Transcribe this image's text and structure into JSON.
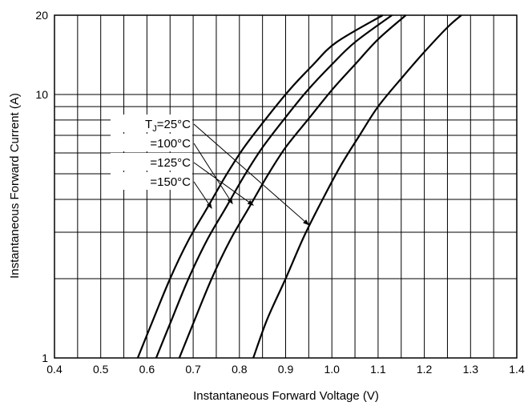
{
  "chart_data": {
    "type": "line",
    "xlabel": "Instantaneous Forward Voltage (V)",
    "ylabel": "Instantaneous Forward Current (A)",
    "xlim": [
      0.4,
      1.4
    ],
    "ylim": [
      1,
      20
    ],
    "yscale": "log",
    "grid": true,
    "x_ticks": [
      {
        "value": 0.4,
        "label": "0.4"
      },
      {
        "value": 0.5,
        "label": "0.5"
      },
      {
        "value": 0.6,
        "label": "0.6"
      },
      {
        "value": 0.7,
        "label": "0.7"
      },
      {
        "value": 0.8,
        "label": "0.8"
      },
      {
        "value": 0.9,
        "label": "0.9"
      },
      {
        "value": 1.0,
        "label": "1.0"
      },
      {
        "value": 1.1,
        "label": "1.1"
      },
      {
        "value": 1.2,
        "label": "1.2"
      },
      {
        "value": 1.3,
        "label": "1.3"
      },
      {
        "value": 1.4,
        "label": "1.4"
      }
    ],
    "y_ticks": [
      {
        "value": 1,
        "label": "1"
      },
      {
        "value": 10,
        "label": "10"
      },
      {
        "value": 20,
        "label": "20"
      }
    ],
    "series": [
      {
        "name": "TJ=25°C",
        "label_prefix": "T",
        "label_sub": "J",
        "label_suffix": "=25°C",
        "arrow_to": [
          0.95,
          3.2
        ],
        "x": [
          0.83,
          0.86,
          0.9,
          0.94,
          0.98,
          1.02,
          1.06,
          1.1,
          1.15,
          1.2,
          1.25,
          1.28
        ],
        "y": [
          1.0,
          1.4,
          2.0,
          2.9,
          4.0,
          5.4,
          7.0,
          9.0,
          11.5,
          14.5,
          18.0,
          20.0
        ]
      },
      {
        "name": "=125°C",
        "label_prefix": "",
        "label_sub": "",
        "label_suffix": "=125°C",
        "arrow_to": [
          0.83,
          3.8
        ],
        "x": [
          0.67,
          0.7,
          0.74,
          0.78,
          0.82,
          0.86,
          0.9,
          0.95,
          1.0,
          1.05,
          1.1,
          1.16
        ],
        "y": [
          1.0,
          1.35,
          2.0,
          2.8,
          3.7,
          4.9,
          6.3,
          8.1,
          10.4,
          13.0,
          16.2,
          20.0
        ]
      },
      {
        "name": "=100°C",
        "label_prefix": "",
        "label_sub": "",
        "label_suffix": "=100°C",
        "arrow_to": [
          0.785,
          3.85
        ],
        "x": [
          0.62,
          0.65,
          0.69,
          0.73,
          0.77,
          0.81,
          0.85,
          0.9,
          0.95,
          1.0,
          1.05,
          1.13
        ],
        "y": [
          1.0,
          1.35,
          2.0,
          2.8,
          3.7,
          4.9,
          6.3,
          8.2,
          10.5,
          13.0,
          15.8,
          20.0
        ]
      },
      {
        "name": "=150°C",
        "label_prefix": "",
        "label_sub": "",
        "label_suffix": "=150°C",
        "arrow_to": [
          0.74,
          3.7
        ],
        "x": [
          0.58,
          0.61,
          0.65,
          0.69,
          0.73,
          0.77,
          0.81,
          0.86,
          0.91,
          0.96,
          1.01,
          1.11
        ],
        "y": [
          1.0,
          1.35,
          2.0,
          2.8,
          3.7,
          4.9,
          6.3,
          8.2,
          10.5,
          13.0,
          15.8,
          20.0
        ]
      }
    ],
    "legend_order": [
      0,
      2,
      1,
      3
    ]
  }
}
